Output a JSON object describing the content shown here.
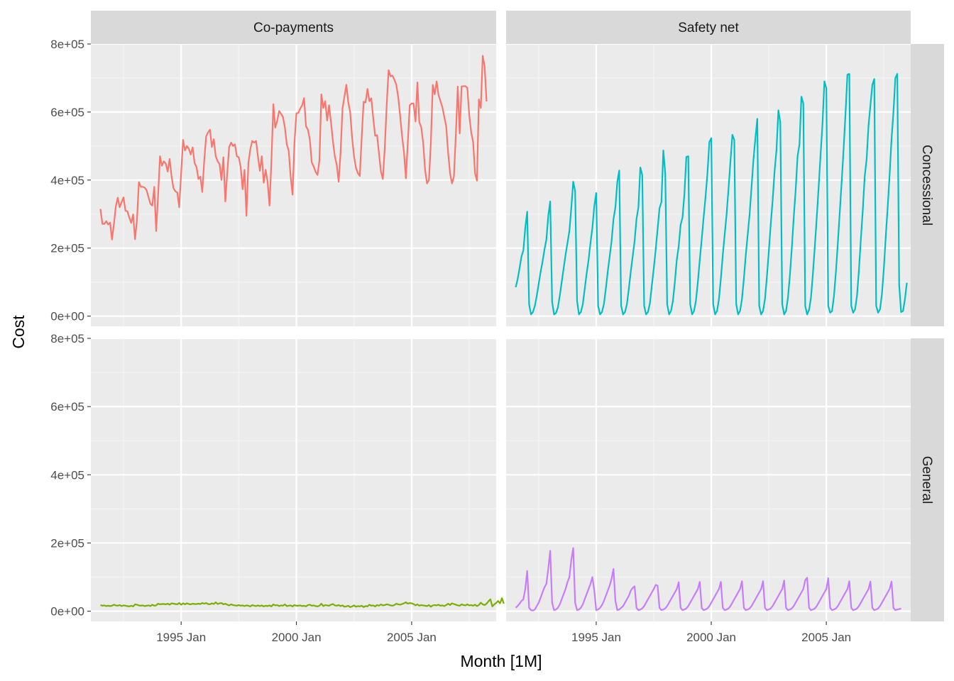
{
  "chart_data": {
    "type": "line",
    "facet_columns": [
      "Co-payments",
      "Safety net"
    ],
    "facet_rows": [
      "Concessional",
      "General"
    ],
    "xlabel": "Month [1M]",
    "ylabel": "Cost",
    "x_ticks": [
      "1995 Jan",
      "2000 Jan",
      "2005 Jan"
    ],
    "y_ticks": [
      "0e+00",
      "2e+05",
      "4e+05",
      "6e+05",
      "8e+05"
    ],
    "y_range": [
      -30000,
      800000
    ],
    "x_range": [
      "1991 Feb",
      "2008 Sep"
    ],
    "grid": true,
    "legend": "none",
    "series": [
      {
        "row": "Concessional",
        "col": "Co-payments",
        "color": "#F8766D",
        "start": "1991 Jul",
        "values": [
          315000,
          271000,
          271000,
          279000,
          269000,
          275000,
          225000,
          270000,
          323000,
          348000,
          320000,
          335000,
          349000,
          310000,
          308000,
          290000,
          274000,
          299000,
          226000,
          282000,
          394000,
          380000,
          380000,
          378000,
          370000,
          350000,
          330000,
          325000,
          380000,
          250000,
          355000,
          470000,
          442000,
          455000,
          448000,
          425000,
          462000,
          412000,
          376000,
          367000,
          363000,
          320000,
          420000,
          518000,
          487000,
          500000,
          492000,
          475000,
          496000,
          450000,
          438000,
          403000,
          410000,
          365000,
          455000,
          528000,
          540000,
          548000,
          497000,
          520000,
          470000,
          455000,
          447000,
          400000,
          467000,
          337000,
          420000,
          497000,
          510000,
          500000,
          505000,
          470000,
          467000,
          438000,
          373000,
          430000,
          295000,
          450000,
          490000,
          515000,
          510000,
          515000,
          468000,
          427000,
          470000,
          392000,
          430000,
          395000,
          325000,
          456000,
          623000,
          554000,
          574000,
          603000,
          595000,
          585000,
          555000,
          505000,
          486000,
          410000,
          357000,
          510000,
          596000,
          597000,
          610000,
          620000,
          641000,
          558000,
          548000,
          519000,
          452000,
          440000,
          424000,
          415000,
          458000,
          652000,
          612000,
          632000,
          575000,
          620000,
          571000,
          515000,
          470000,
          445000,
          395000,
          480000,
          610000,
          645000,
          680000,
          629000,
          600000,
          525000,
          470000,
          436000,
          420000,
          412000,
          525000,
          630000,
          628000,
          668000,
          632000,
          640000,
          582000,
          530000,
          532000,
          478000,
          425000,
          403000,
          493000,
          620000,
          723000,
          705000,
          707000,
          695000,
          680000,
          644000,
          590000,
          530000,
          482000,
          405000,
          510000,
          620000,
          625000,
          625000,
          572000,
          687000,
          570000,
          555000,
          510000,
          430000,
          390000,
          400000,
          510000,
          680000,
          652000,
          690000,
          650000,
          632000,
          614000,
          585000,
          558000,
          480000,
          420000,
          390000,
          410000,
          532000,
          675000,
          537000,
          675000,
          676000,
          676000,
          671000,
          590000,
          540000,
          512000,
          420000,
          398000,
          637000,
          612000,
          765000,
          734000,
          631000
        ]
      },
      {
        "row": "Concessional",
        "col": "Safety net",
        "color": "#00BFC4",
        "start": "1991 Jul",
        "values": [
          85000,
          108000,
          140000,
          175000,
          193000,
          260000,
          307000,
          34000,
          5000,
          12000,
          30000,
          60000,
          95000,
          130000,
          160000,
          195000,
          225000,
          295000,
          337000,
          42000,
          5000,
          9000,
          25000,
          60000,
          100000,
          140000,
          180000,
          215000,
          250000,
          318000,
          395000,
          368000,
          45000,
          5000,
          12000,
          35000,
          80000,
          125000,
          165000,
          215000,
          260000,
          324000,
          362000,
          30000,
          5000,
          12000,
          35000,
          80000,
          130000,
          175000,
          220000,
          285000,
          320000,
          395000,
          428000,
          30000,
          5000,
          12000,
          35000,
          80000,
          130000,
          175000,
          220000,
          285000,
          320000,
          437000,
          415000,
          30000,
          5000,
          12000,
          38000,
          90000,
          140000,
          195000,
          255000,
          317000,
          335000,
          487000,
          420000,
          35000,
          5000,
          15000,
          45000,
          100000,
          165000,
          205000,
          268000,
          290000,
          360000,
          468000,
          470000,
          35000,
          5000,
          15000,
          45000,
          100000,
          165000,
          225000,
          290000,
          350000,
          420000,
          512000,
          523000,
          35000,
          5000,
          15000,
          50000,
          110000,
          180000,
          240000,
          300000,
          375000,
          455000,
          533000,
          518000,
          35000,
          5000,
          15000,
          50000,
          110000,
          180000,
          240000,
          300000,
          380000,
          460000,
          523000,
          580000,
          30000,
          5000,
          15000,
          50000,
          115000,
          190000,
          270000,
          340000,
          425000,
          488000,
          605000,
          570000,
          35000,
          5000,
          15000,
          55000,
          120000,
          200000,
          290000,
          370000,
          470000,
          505000,
          645000,
          625000,
          30000,
          5000,
          18000,
          55000,
          125000,
          205000,
          290000,
          380000,
          475000,
          565000,
          690000,
          670000,
          30000,
          10000,
          15000,
          60000,
          130000,
          215000,
          305000,
          395000,
          490000,
          595000,
          710000,
          712000,
          30000,
          10000,
          20000,
          60000,
          135000,
          225000,
          310000,
          410000,
          460000,
          560000,
          620000,
          680000,
          697000,
          30000,
          10000,
          20000,
          65000,
          140000,
          235000,
          320000,
          415000,
          520000,
          600000,
          700000,
          712000,
          90000,
          12000,
          15000,
          50000,
          98000
        ]
      },
      {
        "row": "General",
        "col": "Co-payments",
        "color": "#7CAE00",
        "start": "1991 Jul",
        "values": [
          18000,
          16000,
          17000,
          15000,
          16000,
          15000,
          16000,
          19000,
          17000,
          16000,
          18000,
          15000,
          17000,
          16000,
          15000,
          14000,
          16000,
          14000,
          20000,
          19000,
          17000,
          16000,
          17000,
          15000,
          16000,
          17000,
          15000,
          19000,
          16000,
          17000,
          22000,
          20000,
          21000,
          21000,
          20000,
          22000,
          19000,
          23000,
          22000,
          21000,
          20000,
          24000,
          19000,
          23000,
          20000,
          23000,
          21000,
          20000,
          22000,
          21000,
          21000,
          22000,
          21000,
          24000,
          22000,
          24000,
          21000,
          20000,
          23000,
          21000,
          26000,
          21000,
          23000,
          24000,
          20000,
          22000,
          19000,
          17000,
          20000,
          18000,
          17000,
          16000,
          18000,
          16000,
          17000,
          15000,
          17000,
          16000,
          14000,
          18000,
          16000,
          15000,
          17000,
          15000,
          17000,
          14000,
          16000,
          15000,
          17000,
          14000,
          20000,
          17000,
          18000,
          15000,
          17000,
          16000,
          20000,
          15000,
          16000,
          17000,
          14000,
          18000,
          16000,
          16000,
          17000,
          15000,
          16000,
          14000,
          18000,
          19000,
          16000,
          17000,
          15000,
          14000,
          16000,
          22000,
          15000,
          18000,
          17000,
          16000,
          19000,
          21000,
          17000,
          16000,
          18000,
          15000,
          17000,
          13000,
          14000,
          16000,
          12000,
          14000,
          17000,
          13000,
          15000,
          14000,
          16000,
          12000,
          15000,
          14000,
          19000,
          16000,
          17000,
          14000,
          18000,
          16000,
          20000,
          17000,
          18000,
          20000,
          19000,
          17000,
          16000,
          18000,
          22000,
          20000,
          19000,
          21000,
          23000,
          26000,
          22000,
          24000,
          23000,
          21000,
          17000,
          20000,
          16000,
          18000,
          17000,
          16000,
          15000,
          18000,
          13000,
          17000,
          18000,
          17000,
          19000,
          16000,
          17000,
          15000,
          18000,
          22000,
          18000,
          23000,
          21000,
          19000,
          17000,
          16000,
          20000,
          18000,
          17000,
          20000,
          17000,
          18000,
          16000,
          19000,
          15000,
          18000,
          25000,
          20000,
          18000,
          22000,
          29000,
          35000,
          14000,
          20000,
          24000,
          30000,
          23000,
          38000,
          22000
        ]
      },
      {
        "row": "General",
        "col": "Safety net",
        "color": "#C77CFF",
        "start": "1991 Jul",
        "values": [
          10000,
          15000,
          22000,
          30000,
          35000,
          65000,
          118000,
          10000,
          3000,
          2000,
          5000,
          15000,
          25000,
          40000,
          55000,
          70000,
          80000,
          125000,
          177000,
          25000,
          3000,
          5000,
          10000,
          20000,
          35000,
          50000,
          65000,
          85000,
          100000,
          150000,
          185000,
          25000,
          3000,
          5000,
          10000,
          20000,
          35000,
          50000,
          65000,
          80000,
          100000,
          60000,
          3000,
          5000,
          10000,
          18000,
          30000,
          45000,
          60000,
          75000,
          95000,
          124000,
          30000,
          3000,
          5000,
          10000,
          15000,
          25000,
          35000,
          45000,
          60000,
          68000,
          73000,
          10000,
          3000,
          5000,
          8000,
          15000,
          25000,
          35000,
          45000,
          55000,
          65000,
          77000,
          75000,
          10000,
          3000,
          5000,
          8000,
          15000,
          25000,
          35000,
          45000,
          55000,
          65000,
          85000,
          10000,
          3000,
          5000,
          8000,
          15000,
          25000,
          35000,
          45000,
          55000,
          65000,
          86000,
          10000,
          3000,
          5000,
          8000,
          15000,
          25000,
          35000,
          45000,
          55000,
          65000,
          86000,
          10000,
          3000,
          5000,
          8000,
          15000,
          25000,
          35000,
          45000,
          55000,
          65000,
          88000,
          10000,
          3000,
          5000,
          8000,
          15000,
          25000,
          35000,
          45000,
          55000,
          65000,
          88000,
          10000,
          3000,
          5000,
          8000,
          15000,
          25000,
          35000,
          45000,
          55000,
          65000,
          90000,
          10000,
          3000,
          5000,
          8000,
          15000,
          25000,
          35000,
          45000,
          55000,
          65000,
          91000,
          98000,
          10000,
          3000,
          5000,
          8000,
          15000,
          25000,
          35000,
          45000,
          55000,
          65000,
          97000,
          10000,
          3000,
          5000,
          8000,
          15000,
          25000,
          35000,
          45000,
          55000,
          65000,
          88000,
          10000,
          3000,
          5000,
          8000,
          15000,
          25000,
          35000,
          45000,
          55000,
          65000,
          87000,
          10000,
          3000,
          5000,
          8000,
          15000,
          25000,
          35000,
          45000,
          55000,
          65000,
          87000,
          10000,
          3000,
          5000,
          6000,
          8000
        ]
      }
    ]
  }
}
